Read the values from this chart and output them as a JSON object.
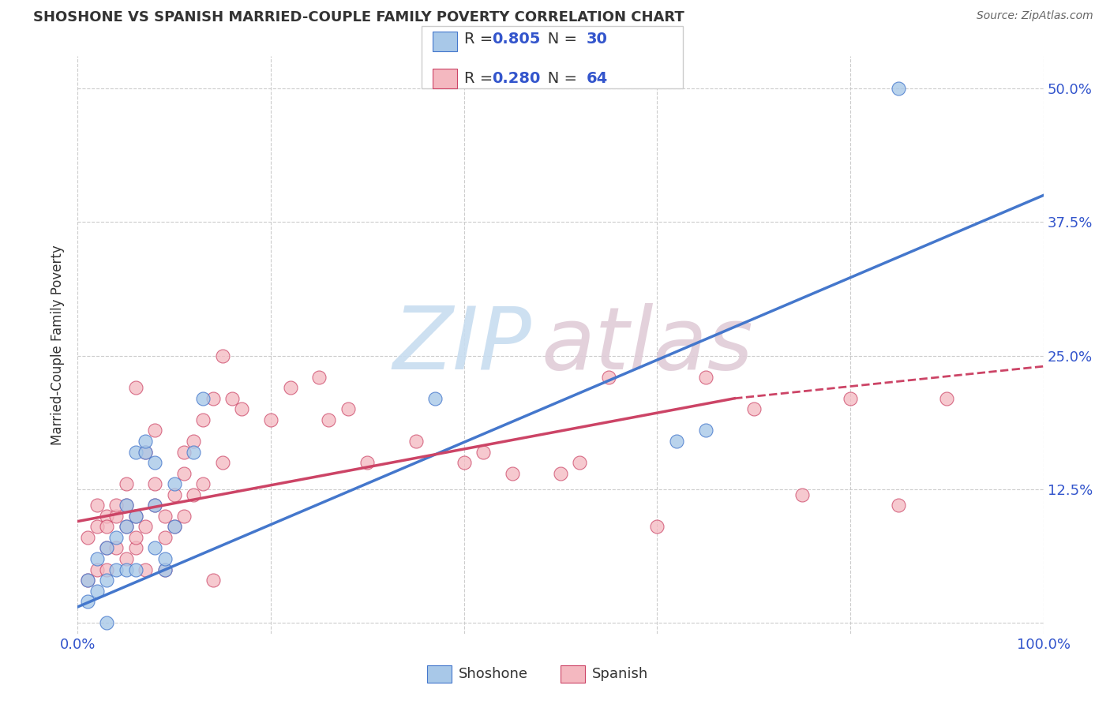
{
  "title": "SHOSHONE VS SPANISH MARRIED-COUPLE FAMILY POVERTY CORRELATION CHART",
  "source": "Source: ZipAtlas.com",
  "ylabel": "Married-Couple Family Poverty",
  "xlim": [
    0,
    100
  ],
  "ylim": [
    -1,
    53
  ],
  "shoshone_color": "#a8c8e8",
  "spanish_color": "#f4b8c0",
  "shoshone_line_color": "#4477cc",
  "spanish_line_color": "#cc4466",
  "background_color": "#ffffff",
  "grid_color": "#cccccc",
  "shoshone_x": [
    1,
    1,
    2,
    2,
    3,
    3,
    4,
    4,
    5,
    5,
    5,
    6,
    6,
    6,
    7,
    7,
    8,
    8,
    8,
    9,
    9,
    10,
    10,
    12,
    13,
    37,
    62,
    65,
    85,
    3
  ],
  "shoshone_y": [
    2,
    4,
    3,
    6,
    4,
    7,
    5,
    8,
    5,
    9,
    11,
    5,
    10,
    16,
    16,
    17,
    7,
    11,
    15,
    5,
    6,
    9,
    13,
    16,
    21,
    21,
    17,
    18,
    50,
    0
  ],
  "spanish_x": [
    1,
    1,
    2,
    2,
    3,
    3,
    3,
    4,
    4,
    5,
    5,
    5,
    6,
    6,
    7,
    7,
    8,
    8,
    9,
    9,
    10,
    10,
    11,
    11,
    12,
    12,
    13,
    13,
    14,
    15,
    15,
    16,
    17,
    20,
    22,
    25,
    26,
    28,
    30,
    35,
    40,
    42,
    45,
    50,
    52,
    55,
    60,
    65,
    70,
    75,
    80,
    85,
    90,
    6,
    8,
    9,
    11,
    14,
    3,
    4,
    2,
    5,
    7,
    6
  ],
  "spanish_y": [
    4,
    8,
    5,
    9,
    5,
    7,
    10,
    7,
    10,
    6,
    9,
    11,
    7,
    10,
    5,
    9,
    11,
    13,
    8,
    10,
    9,
    12,
    14,
    16,
    12,
    17,
    13,
    19,
    21,
    15,
    25,
    21,
    20,
    19,
    22,
    23,
    19,
    20,
    15,
    17,
    15,
    16,
    14,
    14,
    15,
    23,
    9,
    23,
    20,
    12,
    21,
    11,
    21,
    22,
    18,
    5,
    10,
    4,
    9,
    11,
    11,
    13,
    16,
    8
  ],
  "blue_line_x0": 0,
  "blue_line_y0": 1.5,
  "blue_line_x1": 100,
  "blue_line_y1": 40,
  "pink_solid_x0": 0,
  "pink_solid_y0": 9.5,
  "pink_solid_x1": 68,
  "pink_solid_y1": 21,
  "pink_dash_x0": 68,
  "pink_dash_y0": 21,
  "pink_dash_x1": 100,
  "pink_dash_y1": 24,
  "legend_R1": "0.805",
  "legend_N1": "30",
  "legend_R2": "0.280",
  "legend_N2": "64",
  "text_color_dark": "#333333",
  "text_color_blue": "#3355cc",
  "title_fontsize": 13,
  "source_fontsize": 10,
  "tick_fontsize": 13,
  "ylabel_fontsize": 12
}
